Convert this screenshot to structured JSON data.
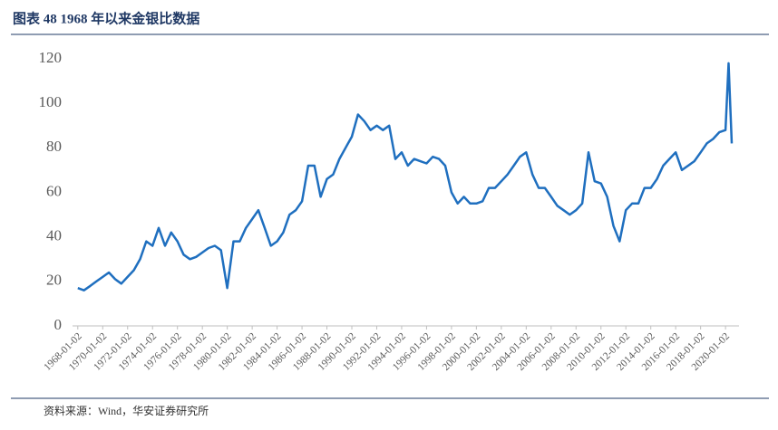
{
  "chart_data": {
    "type": "line",
    "title": "图表 48 1968 年以来金银比数据",
    "source": "资料来源：Wind，华安证券研究所",
    "x": [
      "1968-01-02",
      "1968-07-02",
      "1969-01-02",
      "1969-07-02",
      "1970-01-02",
      "1970-07-02",
      "1971-01-02",
      "1971-07-02",
      "1972-01-02",
      "1972-07-02",
      "1973-01-02",
      "1973-07-02",
      "1974-01-02",
      "1974-07-02",
      "1975-01-02",
      "1975-07-02",
      "1976-01-02",
      "1976-07-02",
      "1977-01-02",
      "1977-07-02",
      "1978-01-02",
      "1978-07-02",
      "1979-01-02",
      "1979-07-02",
      "1980-01-02",
      "1980-07-02",
      "1981-01-02",
      "1981-07-02",
      "1982-01-02",
      "1982-07-02",
      "1983-01-02",
      "1983-07-02",
      "1984-01-02",
      "1984-07-02",
      "1985-01-02",
      "1985-07-02",
      "1986-01-02",
      "1986-07-02",
      "1987-01-02",
      "1987-07-02",
      "1988-01-02",
      "1988-07-02",
      "1989-01-02",
      "1989-07-02",
      "1990-01-02",
      "1990-07-02",
      "1991-01-02",
      "1991-07-02",
      "1992-01-02",
      "1992-07-02",
      "1993-01-02",
      "1993-07-02",
      "1994-01-02",
      "1994-07-02",
      "1995-01-02",
      "1995-07-02",
      "1996-01-02",
      "1996-07-02",
      "1997-01-02",
      "1997-07-02",
      "1998-01-02",
      "1998-07-02",
      "1999-01-02",
      "1999-07-02",
      "2000-01-02",
      "2000-07-02",
      "2001-01-02",
      "2001-07-02",
      "2002-01-02",
      "2002-07-02",
      "2003-01-02",
      "2003-07-02",
      "2004-01-02",
      "2004-07-02",
      "2005-01-02",
      "2005-07-02",
      "2006-01-02",
      "2006-07-02",
      "2007-01-02",
      "2007-07-02",
      "2008-01-02",
      "2008-07-02",
      "2009-01-02",
      "2009-07-02",
      "2010-01-02",
      "2010-07-02",
      "2011-01-02",
      "2011-07-02",
      "2012-01-02",
      "2012-07-02",
      "2013-01-02",
      "2013-07-02",
      "2014-01-02",
      "2014-07-02",
      "2015-01-02",
      "2015-07-02",
      "2016-01-02",
      "2016-07-02",
      "2017-01-02",
      "2017-07-02",
      "2018-01-02",
      "2018-07-02",
      "2019-01-02",
      "2019-07-02",
      "2020-01-02",
      "2020-04-01",
      "2020-07-02"
    ],
    "series": [
      {
        "name": "金银比",
        "color": "#1f6fbf",
        "values": [
          17,
          16,
          18,
          20,
          22,
          24,
          21,
          19,
          22,
          25,
          30,
          38,
          36,
          44,
          36,
          42,
          38,
          32,
          30,
          31,
          33,
          35,
          36,
          34,
          17,
          38,
          38,
          44,
          48,
          52,
          44,
          36,
          38,
          42,
          50,
          52,
          56,
          72,
          72,
          58,
          66,
          68,
          75,
          80,
          85,
          95,
          92,
          88,
          90,
          88,
          90,
          75,
          78,
          72,
          75,
          74,
          73,
          76,
          75,
          72,
          60,
          55,
          58,
          55,
          55,
          56,
          62,
          62,
          65,
          68,
          72,
          76,
          78,
          68,
          62,
          62,
          58,
          54,
          52,
          50,
          52,
          55,
          78,
          65,
          64,
          58,
          45,
          38,
          52,
          55,
          55,
          62,
          62,
          66,
          72,
          75,
          78,
          70,
          72,
          74,
          78,
          82,
          84,
          87,
          88,
          118,
          82
        ]
      }
    ],
    "xlim": [
      "1967-08-01",
      "2021-02-01"
    ],
    "xticks": [
      "1968-01-02",
      "1970-01-02",
      "1972-01-02",
      "1974-01-02",
      "1976-01-02",
      "1978-01-02",
      "1980-01-02",
      "1982-01-02",
      "1984-01-02",
      "1986-01-02",
      "1988-01-02",
      "1990-01-02",
      "1992-01-02",
      "1994-01-02",
      "1996-01-02",
      "1998-01-02",
      "2000-01-02",
      "2002-01-02",
      "2004-01-02",
      "2006-01-02",
      "2008-01-02",
      "2010-01-02",
      "2012-01-02",
      "2014-01-02",
      "2016-01-02",
      "2018-01-02",
      "2020-01-02"
    ],
    "ylim": [
      0,
      120
    ],
    "yticks": [
      0,
      20,
      40,
      60,
      80,
      100,
      120
    ]
  }
}
